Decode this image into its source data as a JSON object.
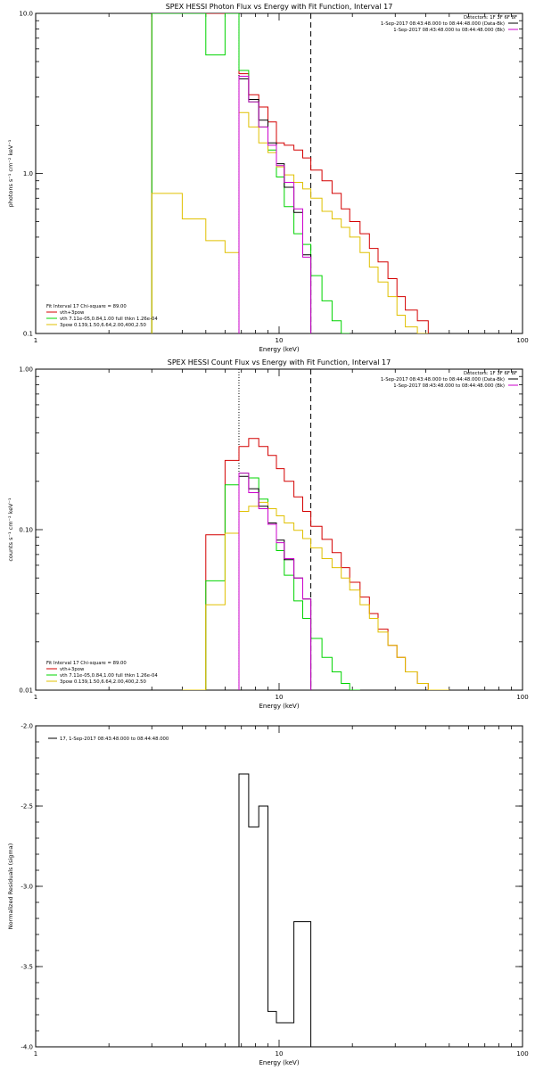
{
  "colors": {
    "axes": "#000000",
    "red": "#d40000",
    "green": "#00d400",
    "yellow": "#e0c000",
    "black": "#000000",
    "magenta": "#cc00cc",
    "background": "#ffffff"
  },
  "chart_data": [
    {
      "id": "photon",
      "type": "line",
      "title": "SPEX HESSI Photon Flux vs Energy with Fit Function, Interval 17",
      "xlabel": "Energy (keV)",
      "ylabel": "photons s⁻¹ cm⁻² keV⁻¹",
      "xscale": "log",
      "yscale": "log",
      "xlim": [
        1,
        100
      ],
      "ylim": [
        0.1,
        10
      ],
      "xticks": [
        {
          "v": 1,
          "label": "1"
        },
        {
          "v": 10,
          "label": "10"
        },
        {
          "v": 100,
          "label": "100"
        }
      ],
      "yticks": [
        {
          "v": 0.1,
          "label": "0.1"
        },
        {
          "v": 1,
          "label": "1.0"
        },
        {
          "v": 10,
          "label": "10.0"
        }
      ],
      "vlines": [
        {
          "x": 6.84,
          "style": "dotted"
        },
        {
          "x": 13.5,
          "style": "dashed"
        }
      ],
      "legend_top": [
        "Detectors: 1F 3F 6F 8F",
        "1-Sep-2017 08:43:48.000 to 08:44:48.000 (Data-Bk)",
        "1-Sep-2017 08:43:48.000 to 08:44:48.000 (Bk)"
      ],
      "legend_top_colors": [
        "black",
        "black",
        "magenta"
      ],
      "legend_bottom": [
        "Fit Interval 17   Chi-square = 89.00",
        "vth+3pow",
        "vth 7.11e-05,0.84,1.00  full thkn 1.26e-04",
        "3pow 0.139,1.50,6.64,2.00,400,2.50"
      ],
      "legend_bottom_colors": [
        "black",
        "red",
        "green",
        "yellow"
      ],
      "series": [
        {
          "name": "vth+3pow",
          "color": "red",
          "edges": [
            3,
            4,
            5,
            6,
            6.84,
            7.5,
            8.25,
            9,
            9.75,
            10.5,
            11.5,
            12.5,
            13.5,
            15,
            16.5,
            18,
            19.5,
            21.5,
            23.5,
            25.5,
            28,
            30.5,
            33,
            37,
            41
          ],
          "values": [
            10,
            10,
            10,
            10,
            4.2,
            3.1,
            2.6,
            2.1,
            1.55,
            1.5,
            1.4,
            1.25,
            1.05,
            0.9,
            0.75,
            0.6,
            0.5,
            0.42,
            0.34,
            0.28,
            0.22,
            0.17,
            0.14,
            0.12
          ]
        },
        {
          "name": "vth",
          "color": "green",
          "edges": [
            3,
            4,
            5,
            6,
            6.84,
            7.5,
            8.25,
            9,
            9.75,
            10.5,
            11.5,
            12.5,
            13.5,
            15,
            16.5,
            18,
            19.5
          ],
          "values": [
            10,
            10,
            5.5,
            10,
            4.4,
            2.8,
            1.95,
            1.4,
            0.95,
            0.62,
            0.42,
            0.36,
            0.23,
            0.16,
            0.12,
            0.1
          ]
        },
        {
          "name": "3pow",
          "color": "yellow",
          "edges": [
            3,
            4,
            5,
            6,
            6.84,
            7.5,
            8.25,
            9,
            9.75,
            10.5,
            11.5,
            12.5,
            13.5,
            15,
            16.5,
            18,
            19.5,
            21.5,
            23.5,
            25.5,
            28,
            30.5,
            33,
            37,
            41
          ],
          "values": [
            0.75,
            0.52,
            0.38,
            0.32,
            2.4,
            1.95,
            1.55,
            1.35,
            1.1,
            0.98,
            0.88,
            0.8,
            0.7,
            0.58,
            0.52,
            0.46,
            0.4,
            0.32,
            0.26,
            0.21,
            0.17,
            0.13,
            0.11,
            0.1
          ]
        },
        {
          "name": "data-bk",
          "color": "black",
          "edges": [
            6.84,
            7.5,
            8.25,
            9,
            9.75,
            10.5,
            11.5,
            12.5,
            13.5
          ],
          "values": [
            3.9,
            2.9,
            2.15,
            1.55,
            1.15,
            0.82,
            0.57,
            0.31
          ]
        },
        {
          "name": "bk",
          "color": "magenta",
          "edges": [
            6.84,
            7.5,
            8.25,
            9,
            9.75,
            10.5,
            11.5,
            12.5,
            13.5
          ],
          "values": [
            4.05,
            2.8,
            1.95,
            1.5,
            1.12,
            0.88,
            0.6,
            0.3
          ]
        }
      ]
    },
    {
      "id": "count",
      "type": "line",
      "title": "SPEX HESSI Count Flux vs Energy with Fit Function, Interval 17",
      "xlabel": "Energy (keV)",
      "ylabel": "counts s⁻¹ cm⁻² keV⁻¹",
      "xscale": "log",
      "yscale": "log",
      "xlim": [
        1,
        100
      ],
      "ylim": [
        0.01,
        1
      ],
      "xticks": [
        {
          "v": 1,
          "label": "1"
        },
        {
          "v": 10,
          "label": "10"
        },
        {
          "v": 100,
          "label": "100"
        }
      ],
      "yticks": [
        {
          "v": 0.01,
          "label": "0.01"
        },
        {
          "v": 0.1,
          "label": "0.10"
        },
        {
          "v": 1,
          "label": "1.00"
        }
      ],
      "vlines": [
        {
          "x": 6.84,
          "style": "dotted"
        },
        {
          "x": 13.5,
          "style": "dashed"
        }
      ],
      "legend_top": [
        "Detectors: 1F 3F 6F 8F",
        "1-Sep-2017 08:43:48.000 to 08:44:48.000 (Data-Bk)",
        "1-Sep-2017 08:43:48.000 to 08:44:48.000 (Bk)"
      ],
      "legend_top_colors": [
        "black",
        "black",
        "magenta"
      ],
      "legend_bottom": [
        "Fit Interval 17   Chi-square = 89.00",
        "vth+3pow",
        "vth 7.11e-05,0.84,1.00  full thkn 1.26e-04",
        "3pow 0.139,1.50,6.64,2.00,400,2.50"
      ],
      "legend_bottom_colors": [
        "black",
        "red",
        "green",
        "yellow"
      ],
      "series": [
        {
          "name": "vth+3pow",
          "color": "red",
          "edges": [
            4,
            5,
            6,
            6.84,
            7.5,
            8.25,
            9,
            9.75,
            10.5,
            11.5,
            12.5,
            13.5,
            15,
            16.5,
            18,
            19.5,
            21.5,
            23.5,
            25.5,
            28,
            30.5,
            33,
            37,
            41,
            45,
            50
          ],
          "values": [
            0.01,
            0.093,
            0.27,
            0.33,
            0.37,
            0.33,
            0.29,
            0.24,
            0.2,
            0.16,
            0.13,
            0.105,
            0.087,
            0.072,
            0.058,
            0.047,
            0.038,
            0.03,
            0.024,
            0.019,
            0.016,
            0.013,
            0.011,
            0.01,
            0.0095
          ]
        },
        {
          "name": "vth",
          "color": "green",
          "edges": [
            4,
            5,
            6,
            6.84,
            7.5,
            8.25,
            9,
            9.75,
            10.5,
            11.5,
            12.5,
            13.5,
            15,
            16.5,
            18,
            19.5,
            21.5
          ],
          "values": [
            0.01,
            0.048,
            0.19,
            0.225,
            0.21,
            0.155,
            0.11,
            0.074,
            0.052,
            0.036,
            0.028,
            0.021,
            0.016,
            0.013,
            0.011,
            0.01
          ]
        },
        {
          "name": "3pow",
          "color": "yellow",
          "edges": [
            4,
            5,
            6,
            6.84,
            7.5,
            8.25,
            9,
            9.75,
            10.5,
            11.5,
            12.5,
            13.5,
            15,
            16.5,
            18,
            19.5,
            21.5,
            23.5,
            25.5,
            28,
            30.5,
            33,
            37,
            41,
            45,
            50
          ],
          "values": [
            0.01,
            0.034,
            0.095,
            0.13,
            0.14,
            0.148,
            0.135,
            0.122,
            0.11,
            0.099,
            0.088,
            0.077,
            0.066,
            0.058,
            0.05,
            0.042,
            0.034,
            0.028,
            0.023,
            0.019,
            0.016,
            0.013,
            0.011,
            0.01,
            0.0095
          ]
        },
        {
          "name": "data-bk",
          "color": "black",
          "edges": [
            6.84,
            7.5,
            8.25,
            9,
            9.75,
            10.5,
            11.5,
            12.5,
            13.5
          ],
          "values": [
            0.215,
            0.18,
            0.14,
            0.11,
            0.086,
            0.065,
            0.05,
            0.037
          ]
        },
        {
          "name": "bk",
          "color": "magenta",
          "edges": [
            6.84,
            7.5,
            8.25,
            9,
            9.75,
            10.5,
            11.5,
            12.5,
            13.5
          ],
          "values": [
            0.225,
            0.17,
            0.135,
            0.108,
            0.083,
            0.066,
            0.05,
            0.037
          ]
        }
      ]
    },
    {
      "id": "residuals",
      "type": "line",
      "title": "",
      "xlabel": "Energy (keV)",
      "ylabel": "Normalized Residuals (sigma)",
      "xscale": "log",
      "yscale": "linear",
      "xlim": [
        1,
        100
      ],
      "ylim": [
        -4.0,
        -2.0
      ],
      "xticks": [
        {
          "v": 1,
          "label": "1"
        },
        {
          "v": 10,
          "label": "10"
        },
        {
          "v": 100,
          "label": "100"
        }
      ],
      "yticks": [
        {
          "v": -4.0,
          "label": "-4.0"
        },
        {
          "v": -3.5,
          "label": "-3.5"
        },
        {
          "v": -3.0,
          "label": "-3.0"
        },
        {
          "v": -2.5,
          "label": "-2.5"
        },
        {
          "v": -2.0,
          "label": "-2.0"
        }
      ],
      "legend_top_left": "17,  1-Sep-2017 08:43:48.000 to 08:44:48.000",
      "series": [
        {
          "name": "17",
          "color": "black",
          "edges": [
            6.84,
            7.5,
            8.25,
            9,
            9.75,
            10.5,
            11.5,
            12.5,
            13.5
          ],
          "values": [
            -2.3,
            -2.63,
            -2.5,
            -3.78,
            -3.85,
            -3.85,
            -3.22,
            -3.22
          ]
        }
      ]
    }
  ]
}
